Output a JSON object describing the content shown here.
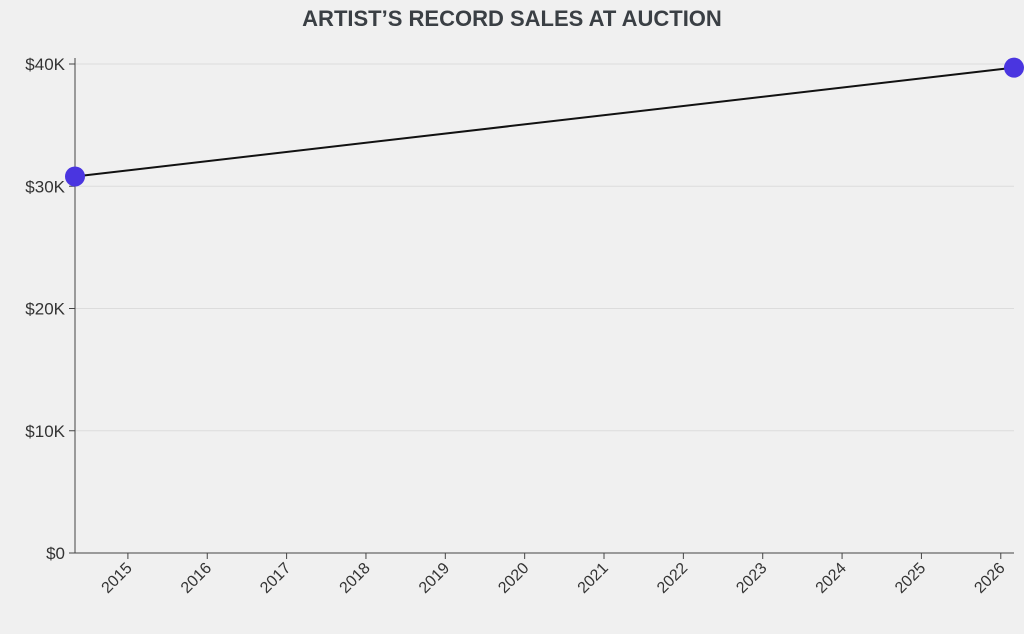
{
  "chart_data": {
    "type": "line",
    "title": "ARTIST’S RECORD SALES AT AUCTION",
    "xlabel": "",
    "ylabel": "",
    "x_ticks": [
      "2015",
      "2016",
      "2017",
      "2018",
      "2019",
      "2020",
      "2021",
      "2022",
      "2023",
      "2024",
      "2025",
      "2026"
    ],
    "y_ticks": [
      "$0",
      "$10K",
      "$20K",
      "$30K",
      "$40K"
    ],
    "y_tick_values": [
      0,
      10000,
      20000,
      30000,
      40000
    ],
    "ylim": [
      0,
      40000
    ],
    "xlim": [
      "2014-05",
      "2026-03"
    ],
    "series": [
      {
        "points": [
          {
            "x": "2014-05",
            "y": 30800
          },
          {
            "x": "2026-03",
            "y": 39700
          }
        ]
      }
    ],
    "grid": true,
    "legend": "none",
    "colors": {
      "line": "#111111",
      "marker": "#4a35e0",
      "grid": "#dcdcdc",
      "background": "#f0f0f0"
    }
  }
}
